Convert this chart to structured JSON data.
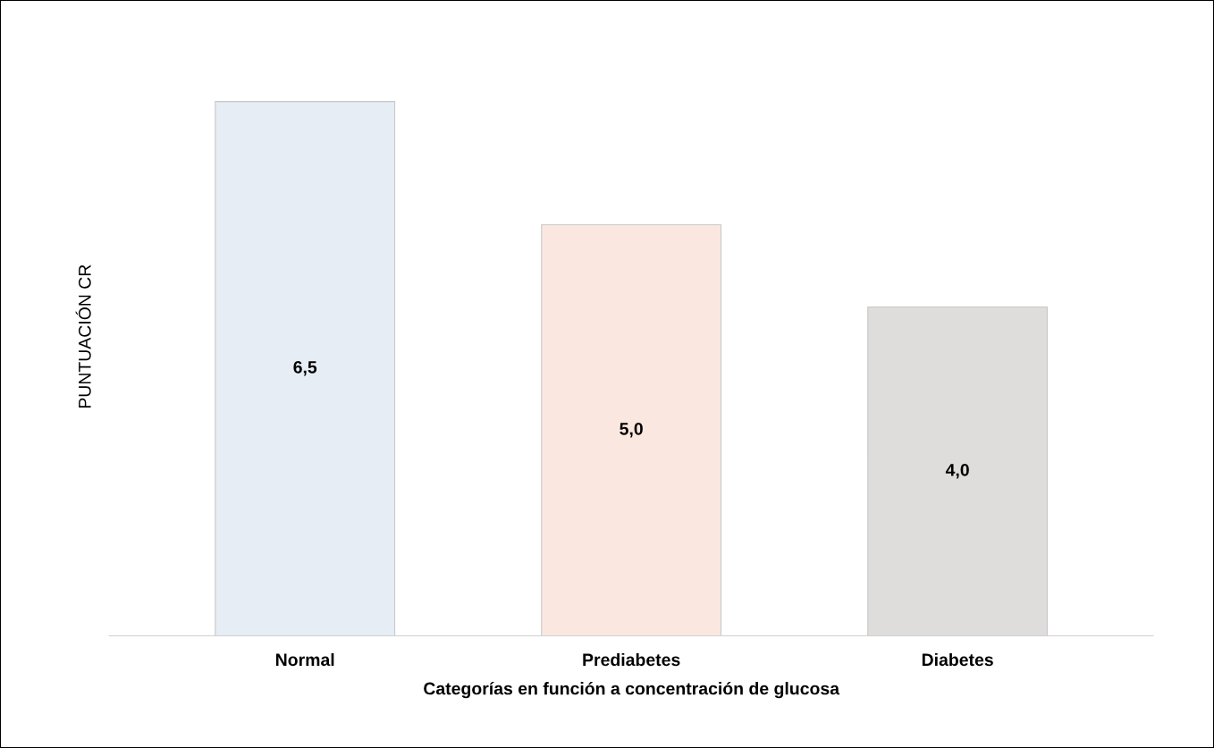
{
  "chart_data": {
    "type": "bar",
    "xlabel": "Categorías en función a concentración de glucosa",
    "ylabel": "PUNTUACIÓN CR",
    "categories": [
      "Normal",
      "Prediabetes",
      "Diabetes"
    ],
    "values": [
      6.5,
      5.0,
      4.0
    ],
    "value_labels": [
      "6,5",
      "5,0",
      "4,0"
    ],
    "colors": [
      "#e6edf5",
      "#fae8e0",
      "#dedddb"
    ],
    "grid": false,
    "legend": false
  }
}
